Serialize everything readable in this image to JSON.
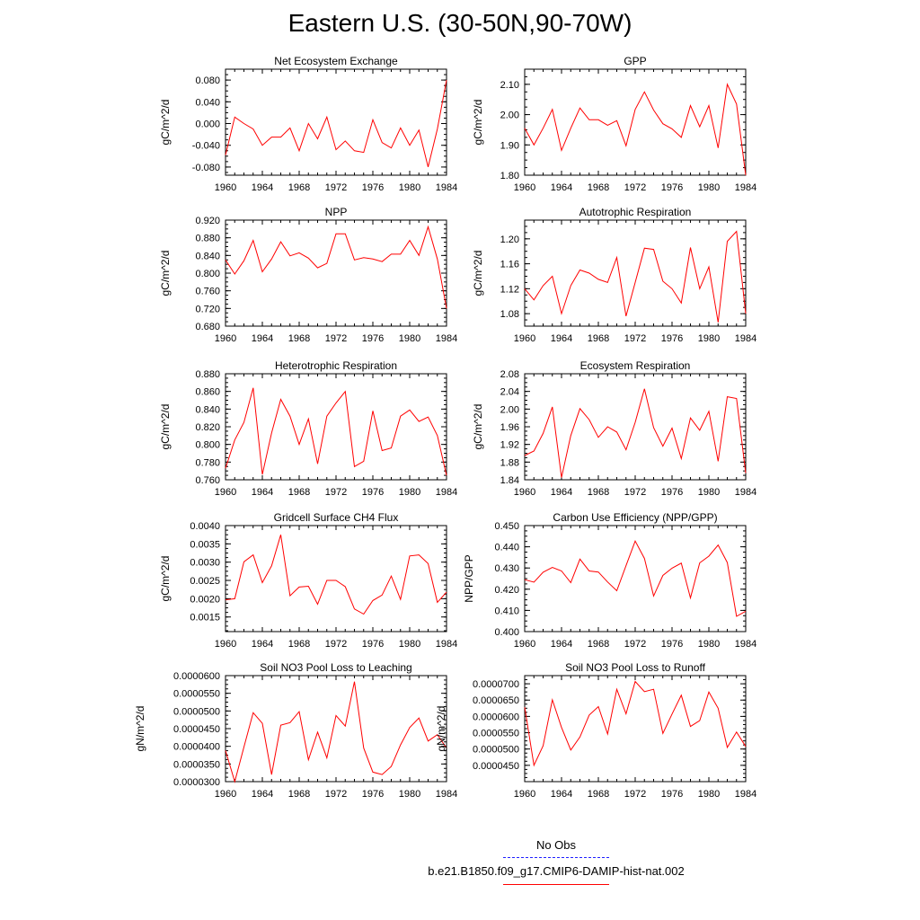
{
  "title": "Eastern U.S. (30-50N,90-70W)",
  "legend": {
    "obs_label": "No Obs",
    "obs_color": "#1f1fff",
    "run_label": "b.e21.B1850.f09_g17.CMIP6-DAMIP-hist-nat.002",
    "run_color": "#ff0000"
  },
  "chart_data": [
    {
      "type": "line",
      "title": "Net Ecosystem Exchange",
      "ylabel": "gC/m^2/d",
      "xlabel": "",
      "x": [
        1960,
        1961,
        1962,
        1963,
        1964,
        1965,
        1966,
        1967,
        1968,
        1969,
        1970,
        1971,
        1972,
        1973,
        1974,
        1975,
        1976,
        1977,
        1978,
        1979,
        1980,
        1981,
        1982,
        1983,
        1984
      ],
      "xlim": [
        1960,
        1984
      ],
      "xticks": [
        "1960",
        "1964",
        "1968",
        "1972",
        "1976",
        "1980",
        "1984"
      ],
      "ylim": [
        -0.095,
        0.1
      ],
      "yticks": [
        "-0.080",
        "-0.040",
        "0.000",
        "0.040",
        "0.080"
      ],
      "series": [
        {
          "values": [
            -0.058,
            0.012,
            0.0,
            -0.01,
            -0.04,
            -0.025,
            -0.025,
            -0.008,
            -0.05,
            0.0,
            -0.028,
            0.012,
            -0.048,
            -0.032,
            -0.05,
            -0.053,
            0.007,
            -0.035,
            -0.045,
            -0.008,
            -0.04,
            -0.012,
            -0.08,
            -0.01,
            0.08
          ]
        }
      ]
    },
    {
      "type": "line",
      "title": "GPP",
      "ylabel": "gC/m^2/d",
      "xlabel": "",
      "x": [
        1960,
        1961,
        1962,
        1963,
        1964,
        1965,
        1966,
        1967,
        1968,
        1969,
        1970,
        1971,
        1972,
        1973,
        1974,
        1975,
        1976,
        1977,
        1978,
        1979,
        1980,
        1981,
        1982,
        1983,
        1984
      ],
      "xlim": [
        1960,
        1984
      ],
      "xticks": [
        "1960",
        "1964",
        "1968",
        "1972",
        "1976",
        "1980",
        "1984"
      ],
      "ylim": [
        1.8,
        2.15
      ],
      "yticks": [
        "1.80",
        "1.90",
        "2.00",
        "2.10"
      ],
      "series": [
        {
          "values": [
            1.955,
            1.9,
            1.955,
            2.017,
            1.882,
            1.955,
            2.022,
            1.983,
            1.983,
            1.965,
            1.98,
            1.897,
            2.017,
            2.075,
            2.015,
            1.97,
            1.953,
            1.925,
            2.03,
            1.96,
            2.03,
            1.89,
            2.1,
            2.035,
            1.8
          ]
        }
      ]
    },
    {
      "type": "line",
      "title": "NPP",
      "ylabel": "gC/m^2/d",
      "xlabel": "",
      "x": [
        1960,
        1961,
        1962,
        1963,
        1964,
        1965,
        1966,
        1967,
        1968,
        1969,
        1970,
        1971,
        1972,
        1973,
        1974,
        1975,
        1976,
        1977,
        1978,
        1979,
        1980,
        1981,
        1982,
        1983,
        1984
      ],
      "xlim": [
        1960,
        1984
      ],
      "xticks": [
        "1960",
        "1964",
        "1968",
        "1972",
        "1976",
        "1980",
        "1984"
      ],
      "ylim": [
        0.68,
        0.92
      ],
      "yticks": [
        "0.680",
        "0.720",
        "0.760",
        "0.800",
        "0.840",
        "0.880",
        "0.920"
      ],
      "series": [
        {
          "values": [
            0.83,
            0.798,
            0.828,
            0.874,
            0.803,
            0.832,
            0.871,
            0.839,
            0.846,
            0.834,
            0.812,
            0.822,
            0.889,
            0.889,
            0.83,
            0.835,
            0.832,
            0.826,
            0.843,
            0.843,
            0.874,
            0.84,
            0.905,
            0.832,
            0.72
          ]
        }
      ]
    },
    {
      "type": "line",
      "title": "Autotrophic Respiration",
      "ylabel": "gC/m^2/d",
      "xlabel": "",
      "x": [
        1960,
        1961,
        1962,
        1963,
        1964,
        1965,
        1966,
        1967,
        1968,
        1969,
        1970,
        1971,
        1972,
        1973,
        1974,
        1975,
        1976,
        1977,
        1978,
        1979,
        1980,
        1981,
        1982,
        1983,
        1984
      ],
      "xlim": [
        1960,
        1984
      ],
      "xticks": [
        "1960",
        "1964",
        "1968",
        "1972",
        "1976",
        "1980",
        "1984"
      ],
      "ylim": [
        1.06,
        1.23
      ],
      "yticks": [
        "1.08",
        "1.12",
        "1.16",
        "1.20"
      ],
      "series": [
        {
          "values": [
            1.12,
            1.102,
            1.125,
            1.14,
            1.08,
            1.125,
            1.15,
            1.145,
            1.135,
            1.13,
            1.17,
            1.076,
            1.13,
            1.185,
            1.183,
            1.132,
            1.12,
            1.097,
            1.186,
            1.12,
            1.155,
            1.066,
            1.196,
            1.212,
            1.08
          ]
        }
      ]
    },
    {
      "type": "line",
      "title": "Heterotrophic Respiration",
      "ylabel": "gC/m^2/d",
      "xlabel": "",
      "x": [
        1960,
        1961,
        1962,
        1963,
        1964,
        1965,
        1966,
        1967,
        1968,
        1969,
        1970,
        1971,
        1972,
        1973,
        1974,
        1975,
        1976,
        1977,
        1978,
        1979,
        1980,
        1981,
        1982,
        1983,
        1984
      ],
      "xlim": [
        1960,
        1984
      ],
      "xticks": [
        "1960",
        "1964",
        "1968",
        "1972",
        "1976",
        "1980",
        "1984"
      ],
      "ylim": [
        0.76,
        0.88
      ],
      "yticks": [
        "0.760",
        "0.780",
        "0.800",
        "0.820",
        "0.840",
        "0.860",
        "0.880"
      ],
      "series": [
        {
          "values": [
            0.773,
            0.805,
            0.825,
            0.864,
            0.766,
            0.813,
            0.851,
            0.832,
            0.8,
            0.829,
            0.778,
            0.832,
            0.847,
            0.86,
            0.775,
            0.781,
            0.838,
            0.793,
            0.796,
            0.832,
            0.839,
            0.826,
            0.831,
            0.81,
            0.765
          ]
        }
      ]
    },
    {
      "type": "line",
      "title": "Ecosystem Respiration",
      "ylabel": "gC/m^2/d",
      "xlabel": "",
      "x": [
        1960,
        1961,
        1962,
        1963,
        1964,
        1965,
        1966,
        1967,
        1968,
        1969,
        1970,
        1971,
        1972,
        1973,
        1974,
        1975,
        1976,
        1977,
        1978,
        1979,
        1980,
        1981,
        1982,
        1983,
        1984
      ],
      "xlim": [
        1960,
        1984
      ],
      "xticks": [
        "1960",
        "1964",
        "1968",
        "1972",
        "1976",
        "1980",
        "1984"
      ],
      "ylim": [
        1.84,
        2.08
      ],
      "yticks": [
        "1.84",
        "1.88",
        "1.92",
        "1.96",
        "2.00",
        "2.04",
        "2.08"
      ],
      "series": [
        {
          "values": [
            1.895,
            1.905,
            1.945,
            2.005,
            1.845,
            1.94,
            2.001,
            1.976,
            1.936,
            1.96,
            1.948,
            1.908,
            1.97,
            2.046,
            1.958,
            1.916,
            1.957,
            1.888,
            1.98,
            1.952,
            1.995,
            1.882,
            2.028,
            2.024,
            1.855
          ]
        }
      ]
    },
    {
      "type": "line",
      "title": "Gridcell Surface CH4 Flux",
      "ylabel": "gC/m^2/d",
      "xlabel": "",
      "x": [
        1960,
        1961,
        1962,
        1963,
        1964,
        1965,
        1966,
        1967,
        1968,
        1969,
        1970,
        1971,
        1972,
        1973,
        1974,
        1975,
        1976,
        1977,
        1978,
        1979,
        1980,
        1981,
        1982,
        1983,
        1984
      ],
      "xlim": [
        1960,
        1984
      ],
      "xticks": [
        "1960",
        "1964",
        "1968",
        "1972",
        "1976",
        "1980",
        "1984"
      ],
      "ylim": [
        0.0011,
        0.004
      ],
      "yticks": [
        "0.0015",
        "0.0020",
        "0.0025",
        "0.0030",
        "0.0035",
        "0.0040"
      ],
      "series": [
        {
          "values": [
            0.00197,
            0.002,
            0.00301,
            0.0032,
            0.00244,
            0.0029,
            0.00375,
            0.00208,
            0.00232,
            0.00234,
            0.00185,
            0.0025,
            0.0025,
            0.00233,
            0.00172,
            0.00158,
            0.00195,
            0.0021,
            0.00262,
            0.00198,
            0.00317,
            0.0032,
            0.00296,
            0.0019,
            0.00218
          ]
        }
      ]
    },
    {
      "type": "line",
      "title": "Carbon Use Efficiency (NPP/GPP)",
      "ylabel": "NPP/GPP",
      "xlabel": "",
      "x": [
        1960,
        1961,
        1962,
        1963,
        1964,
        1965,
        1966,
        1967,
        1968,
        1969,
        1970,
        1971,
        1972,
        1973,
        1974,
        1975,
        1976,
        1977,
        1978,
        1979,
        1980,
        1981,
        1982,
        1983,
        1984
      ],
      "xlim": [
        1960,
        1984
      ],
      "xticks": [
        "1960",
        "1964",
        "1968",
        "1972",
        "1976",
        "1980",
        "1984"
      ],
      "ylim": [
        0.4,
        0.45
      ],
      "yticks": [
        "0.400",
        "0.410",
        "0.420",
        "0.430",
        "0.440",
        "0.450"
      ],
      "series": [
        {
          "values": [
            0.4245,
            0.4233,
            0.428,
            0.4303,
            0.4286,
            0.4231,
            0.4342,
            0.4286,
            0.4281,
            0.4234,
            0.4193,
            0.4311,
            0.4427,
            0.4345,
            0.4168,
            0.4265,
            0.4299,
            0.4323,
            0.4159,
            0.4324,
            0.4356,
            0.4408,
            0.4326,
            0.4072,
            0.4096
          ]
        }
      ]
    },
    {
      "type": "line",
      "title": "Soil NO3 Pool Loss to Leaching",
      "ylabel": "gN/m^2/d",
      "xlabel": "",
      "x": [
        1960,
        1961,
        1962,
        1963,
        1964,
        1965,
        1966,
        1967,
        1968,
        1969,
        1970,
        1971,
        1972,
        1973,
        1974,
        1975,
        1976,
        1977,
        1978,
        1979,
        1980,
        1981,
        1982,
        1983,
        1984
      ],
      "xlim": [
        1960,
        1984
      ],
      "xticks": [
        "1960",
        "1964",
        "1968",
        "1972",
        "1976",
        "1980",
        "1984"
      ],
      "ylim": [
        3e-05,
        6e-05
      ],
      "yticks": [
        "0.0000300",
        "0.0000350",
        "0.0000400",
        "0.0000450",
        "0.0000500",
        "0.0000550",
        "0.0000600"
      ],
      "series": [
        {
          "values": [
            3.88e-05,
            3e-05,
            3.98e-05,
            4.95e-05,
            4.65e-05,
            3.2e-05,
            4.6e-05,
            4.67e-05,
            4.98e-05,
            3.62e-05,
            4.4e-05,
            3.67e-05,
            4.87e-05,
            4.57e-05,
            5.83e-05,
            3.95e-05,
            3.27e-05,
            3.2e-05,
            3.43e-05,
            4.04e-05,
            4.53e-05,
            4.8e-05,
            4.15e-05,
            4.33e-05,
            3.95e-05
          ]
        }
      ]
    },
    {
      "type": "line",
      "title": "Soil NO3 Pool Loss to Runoff",
      "ylabel": "gN/m^2/d",
      "xlabel": "",
      "x": [
        1960,
        1961,
        1962,
        1963,
        1964,
        1965,
        1966,
        1967,
        1968,
        1969,
        1970,
        1971,
        1972,
        1973,
        1974,
        1975,
        1976,
        1977,
        1978,
        1979,
        1980,
        1981,
        1982,
        1983,
        1984
      ],
      "xlim": [
        1960,
        1984
      ],
      "xticks": [
        "1960",
        "1964",
        "1968",
        "1972",
        "1976",
        "1980",
        "1984"
      ],
      "ylim": [
        4e-05,
        7.25e-05
      ],
      "yticks": [
        "0.0000450",
        "0.0000500",
        "0.0000550",
        "0.0000600",
        "0.0000650",
        "0.0000700"
      ],
      "series": [
        {
          "values": [
            6.28e-05,
            4.5e-05,
            5.1e-05,
            6.51e-05,
            5.66e-05,
            4.97e-05,
            5.37e-05,
            6.04e-05,
            6.3e-05,
            5.46e-05,
            6.83e-05,
            6.08e-05,
            7.07e-05,
            6.76e-05,
            6.83e-05,
            5.48e-05,
            6.07e-05,
            6.65e-05,
            5.69e-05,
            5.87e-05,
            6.75e-05,
            6.25e-05,
            5.05e-05,
            5.52e-05,
            5.08e-05
          ]
        }
      ]
    }
  ]
}
